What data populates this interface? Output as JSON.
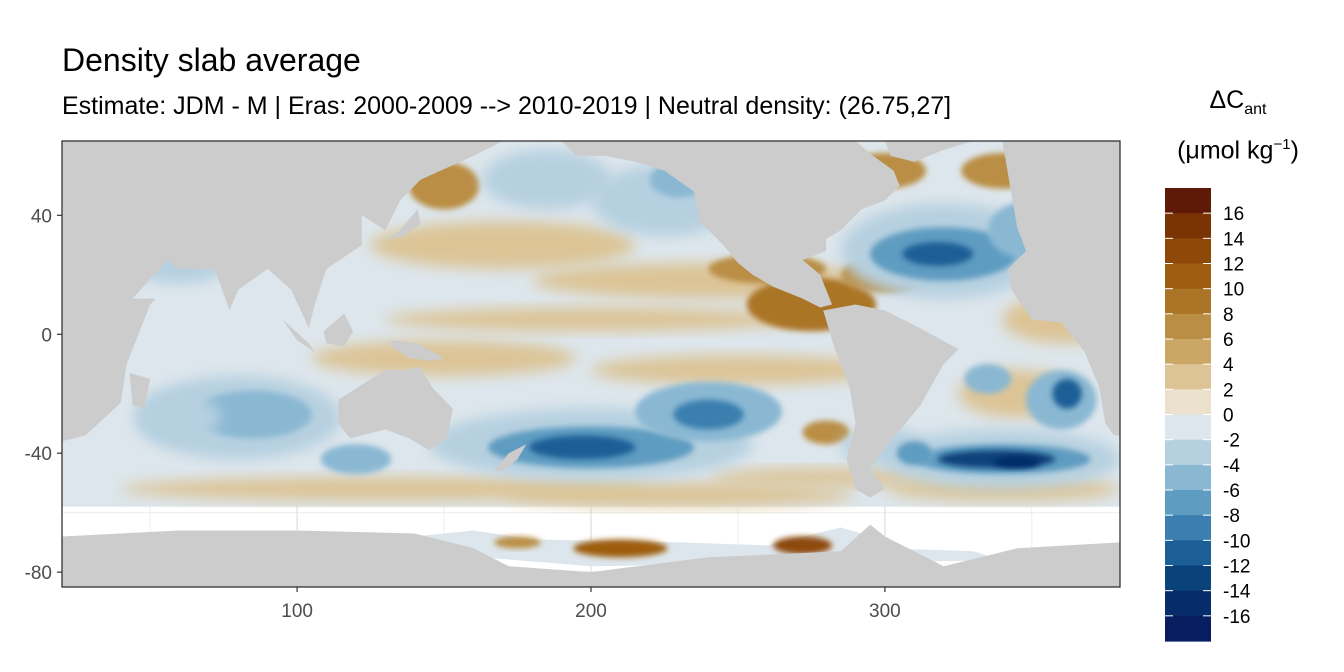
{
  "chart_data": {
    "type": "heatmap",
    "title": "Density slab average",
    "subtitle": "Estimate: JDM - M | Eras: 2000-2009 --> 2010-2019 | Neutral density: (26.75,27]",
    "legend_title": {
      "symbol": "ΔC",
      "subscript": "ant",
      "unit_open": "(μmol kg",
      "unit_sup": "−1",
      "unit_close": ")"
    },
    "xlim": [
      20,
      380
    ],
    "ylim": [
      -85,
      65
    ],
    "x_ticks": [
      100,
      200,
      300
    ],
    "y_ticks": [
      40,
      0,
      -40,
      -80
    ],
    "grid": true,
    "legend_position": "right",
    "colorbar": {
      "labels": [
        "16",
        "14",
        "12",
        "10",
        "8",
        "6",
        "4",
        "2",
        "0",
        "-2",
        "-4",
        "-6",
        "-8",
        "-10",
        "-12",
        "-14",
        "-16"
      ],
      "colors": [
        "#5e1a07",
        "#7a3305",
        "#8e4807",
        "#9e5d11",
        "#ab7426",
        "#ba8e44",
        "#cba766",
        "#dcc496",
        "#ebe1cc",
        "#dde6ec",
        "#b6d0e0",
        "#8ab8d3",
        "#5f9cc1",
        "#3a7faf",
        "#1c5e96",
        "#0a427a",
        "#062c69",
        "#061d5f"
      ]
    },
    "land_color": "#cccccc",
    "features": [
      {
        "region": "North Atlantic (around 320E, 25N)",
        "value": -12
      },
      {
        "region": "South Atlantic / Southern Ocean (around 340E, -40S)",
        "value": -16
      },
      {
        "region": "South Pacific (around 200E, -40S)",
        "value": -12
      },
      {
        "region": "South Pacific (around 240E, -28S)",
        "value": -10
      },
      {
        "region": "Indian Ocean (around 80E, -28S)",
        "value": -6
      },
      {
        "region": "Equatorial East Pacific (around 270E, 10N)",
        "value": 8
      },
      {
        "region": "North Pacific (around 150E, 50N)",
        "value": 6
      },
      {
        "region": "Antarctic margin (around 210E, -72S)",
        "value": 10
      },
      {
        "region": "Antarctic margin (around 270E, -72S)",
        "value": 12
      }
    ]
  }
}
